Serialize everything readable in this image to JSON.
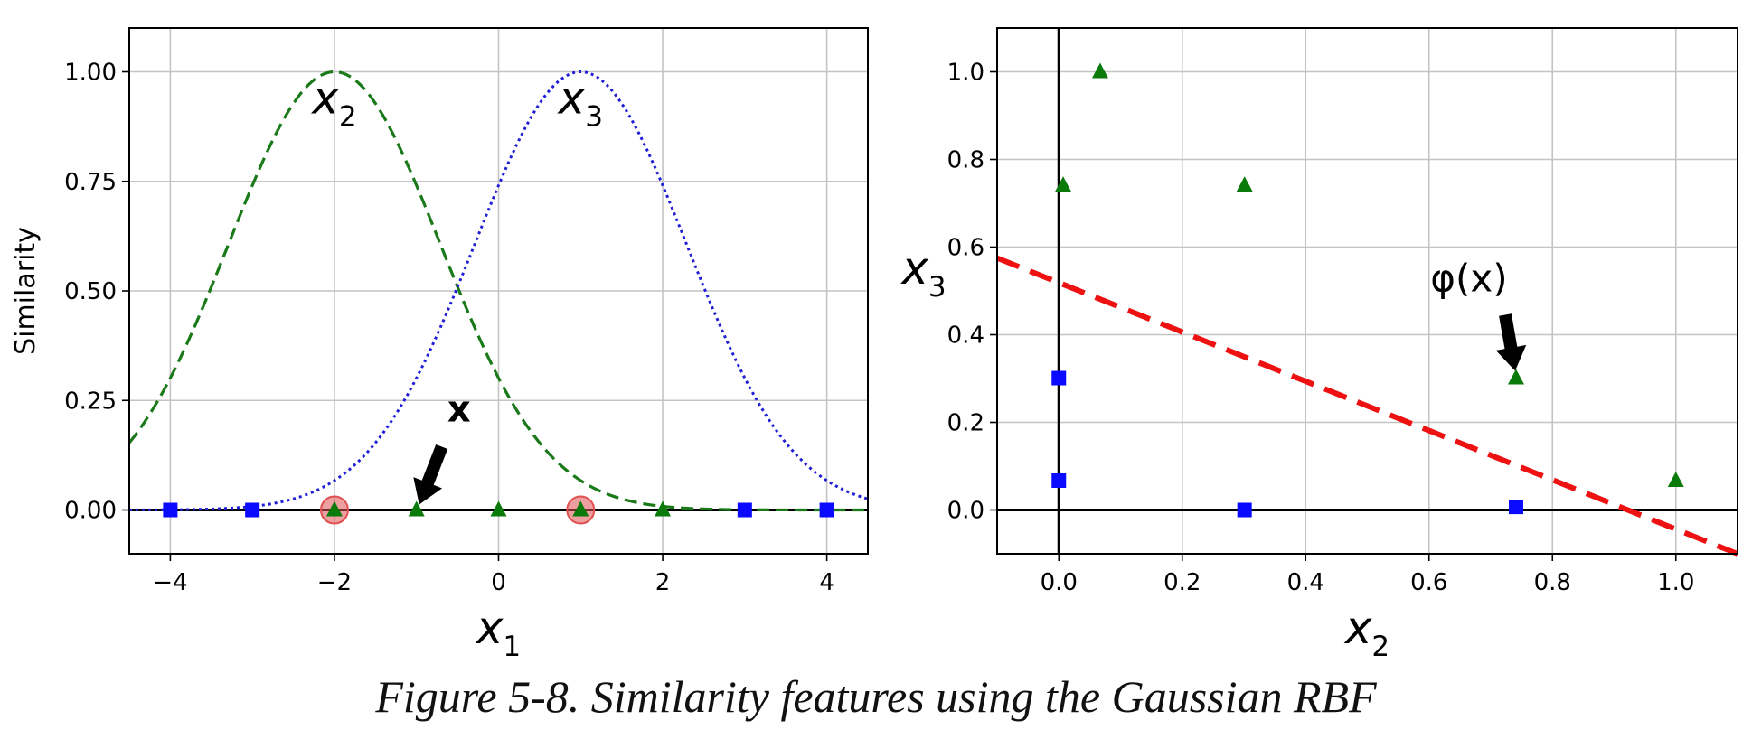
{
  "chart_data": [
    {
      "type": "line",
      "xlabel": "x1",
      "ylabel": "Similarity",
      "xlim": [
        -4.5,
        4.5
      ],
      "ylim": [
        -0.1,
        1.1
      ],
      "xticks": [
        "−4",
        "−2",
        "0",
        "2",
        "4"
      ],
      "yticks": [
        "0.00",
        "0.25",
        "0.50",
        "0.75",
        "1.00"
      ],
      "grid": true,
      "gamma": 0.3,
      "curves": [
        {
          "label": "x2",
          "center": -2,
          "color": "#1a7a1a",
          "style": "dashed"
        },
        {
          "label": "x3",
          "center": 1,
          "color": "#1f1fd6",
          "style": "dotted"
        }
      ],
      "series": [
        {
          "marker": "square",
          "color": "#0a0aff",
          "x": [
            -4,
            -3,
            3,
            4
          ],
          "y": [
            0,
            0,
            0,
            0
          ]
        },
        {
          "marker": "triangle",
          "color": "#0a7a0a",
          "x": [
            -2,
            -1,
            0,
            1,
            2
          ],
          "y": [
            0,
            0,
            0,
            0,
            0
          ]
        }
      ],
      "landmarks": {
        "x": [
          -2,
          1
        ],
        "color": "#e05050"
      },
      "annotation": {
        "text": "x",
        "point": [
          -1,
          0
        ]
      }
    },
    {
      "type": "scatter",
      "xlabel": "x2",
      "ylabel": "x3",
      "xlim": [
        -0.1,
        1.1
      ],
      "ylim": [
        -0.1,
        1.1
      ],
      "xticks": [
        "0.0",
        "0.2",
        "0.4",
        "0.6",
        "0.8",
        "1.0"
      ],
      "yticks": [
        "0.0",
        "0.2",
        "0.4",
        "0.6",
        "0.8",
        "1.0"
      ],
      "grid": true,
      "series": [
        {
          "marker": "square",
          "color": "#0a0aff",
          "x": [
            0.0,
            0.0,
            0.301,
            0.741
          ],
          "y": [
            0.301,
            0.067,
            0.0,
            0.007
          ]
        },
        {
          "marker": "triangle",
          "color": "#0a7a0a",
          "x": [
            0.067,
            0.007,
            0.301,
            0.741,
            1.0
          ],
          "y": [
            1.0,
            0.741,
            0.741,
            0.301,
            0.067
          ]
        }
      ],
      "boundary": {
        "color": "#ee1111",
        "style": "dashed",
        "points": [
          [
            -0.1,
            0.575
          ],
          [
            1.1,
            -0.1
          ]
        ]
      },
      "annotation": {
        "text": "φ(x)",
        "point": [
          0.741,
          0.301
        ]
      }
    }
  ],
  "caption": "Figure 5-8. Similarity features using the Gaussian RBF"
}
